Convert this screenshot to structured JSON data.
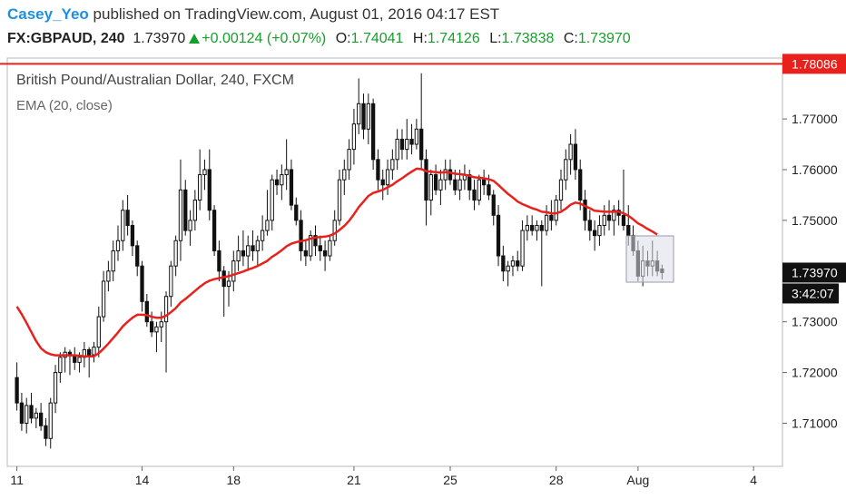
{
  "header": {
    "publisher": "Casey_Yeo",
    "published_text": "published on TradingView.com, August 01, 2016 04:17 EST",
    "symbol": "FX:GBPAUD, 240",
    "last": "1.73970",
    "change": "+0.00124 (+0.07%)",
    "open_label": "O:",
    "open": "1.74041",
    "high_label": "H:",
    "high": "1.74126",
    "low_label": "L:",
    "low": "1.73838",
    "close_label": "C:",
    "close": "1.73970"
  },
  "legend": {
    "symbol_title": "British Pound/Australian Dollar, 240, FXCM",
    "indicator_title": "EMA (20, close)"
  },
  "colors": {
    "up_candle": "#ffffff",
    "down_candle": "#111111",
    "wick": "#111111",
    "ema": "#e8211c",
    "hline": "#e8211c",
    "price_up": "#14a02a",
    "axis_text": "#222222",
    "publisher": "#1f8fe0"
  },
  "chart_data": {
    "type": "candlestick",
    "title": "British Pound/Australian Dollar, 240, FXCM",
    "ylim": [
      1.7015,
      1.782
    ],
    "y_ticks": [
      "1.71000",
      "1.72000",
      "1.73000",
      "1.74000",
      "1.75000",
      "1.76000",
      "1.77000"
    ],
    "y_tick_values": [
      1.71,
      1.72,
      1.73,
      1.74,
      1.75,
      1.76,
      1.77
    ],
    "x_ticks": [
      "11",
      "14",
      "18",
      "21",
      "25",
      "28",
      "Aug",
      "4"
    ],
    "x_tick_bars": [
      0,
      26,
      45,
      70,
      90,
      112,
      129,
      153
    ],
    "x_range_bars": [
      -2,
      159
    ],
    "horizontal_line": {
      "value": 1.78086,
      "label": "1.78086"
    },
    "last_price": {
      "value": 1.7397,
      "label": "1.73970",
      "countdown": "3:42:07"
    },
    "series": [
      {
        "name": "GBPAUD",
        "ohlc": [
          [
            1.719,
            1.722,
            1.7125,
            1.714
          ],
          [
            1.714,
            1.716,
            1.7085,
            1.71
          ],
          [
            1.71,
            1.715,
            1.708,
            1.7135
          ],
          [
            1.7135,
            1.716,
            1.71,
            1.711
          ],
          [
            1.711,
            1.713,
            1.709,
            1.712
          ],
          [
            1.712,
            1.714,
            1.7085,
            1.7095
          ],
          [
            1.7095,
            1.711,
            1.7055,
            1.707
          ],
          [
            1.707,
            1.715,
            1.705,
            1.714
          ],
          [
            1.714,
            1.7215,
            1.712,
            1.72
          ],
          [
            1.72,
            1.724,
            1.718,
            1.723
          ],
          [
            1.723,
            1.725,
            1.72,
            1.724
          ],
          [
            1.724,
            1.7245,
            1.7195,
            1.7235
          ],
          [
            1.7235,
            1.725,
            1.7205,
            1.722
          ],
          [
            1.722,
            1.724,
            1.72,
            1.723
          ],
          [
            1.723,
            1.726,
            1.721,
            1.7245
          ],
          [
            1.7245,
            1.725,
            1.719,
            1.7235
          ],
          [
            1.7235,
            1.726,
            1.722,
            1.725
          ],
          [
            1.725,
            1.733,
            1.723,
            1.731
          ],
          [
            1.731,
            1.74,
            1.73,
            1.738
          ],
          [
            1.738,
            1.742,
            1.736,
            1.74
          ],
          [
            1.74,
            1.746,
            1.738,
            1.744
          ],
          [
            1.744,
            1.749,
            1.742,
            1.746
          ],
          [
            1.746,
            1.754,
            1.744,
            1.752
          ],
          [
            1.752,
            1.755,
            1.747,
            1.749
          ],
          [
            1.749,
            1.75,
            1.743,
            1.745
          ],
          [
            1.745,
            1.746,
            1.739,
            1.741
          ],
          [
            1.741,
            1.742,
            1.732,
            1.734
          ],
          [
            1.734,
            1.7355,
            1.729,
            1.73
          ],
          [
            1.73,
            1.732,
            1.727,
            1.728
          ],
          [
            1.728,
            1.73,
            1.724,
            1.729
          ],
          [
            1.729,
            1.732,
            1.726,
            1.73
          ],
          [
            1.73,
            1.736,
            1.72,
            1.735
          ],
          [
            1.735,
            1.742,
            1.733,
            1.741
          ],
          [
            1.741,
            1.747,
            1.739,
            1.746
          ],
          [
            1.746,
            1.762,
            1.742,
            1.756
          ],
          [
            1.756,
            1.758,
            1.747,
            1.748
          ],
          [
            1.748,
            1.752,
            1.745,
            1.75
          ],
          [
            1.75,
            1.756,
            1.748,
            1.754
          ],
          [
            1.754,
            1.764,
            1.752,
            1.759
          ],
          [
            1.759,
            1.762,
            1.756,
            1.76
          ],
          [
            1.76,
            1.764,
            1.75,
            1.752
          ],
          [
            1.752,
            1.753,
            1.743,
            1.744
          ],
          [
            1.744,
            1.746,
            1.738,
            1.74
          ],
          [
            1.74,
            1.741,
            1.731,
            1.737
          ],
          [
            1.737,
            1.74,
            1.733,
            1.738
          ],
          [
            1.738,
            1.744,
            1.736,
            1.742
          ],
          [
            1.742,
            1.747,
            1.74,
            1.744
          ],
          [
            1.744,
            1.748,
            1.741,
            1.743
          ],
          [
            1.743,
            1.747,
            1.74,
            1.745
          ],
          [
            1.745,
            1.748,
            1.742,
            1.744
          ],
          [
            1.744,
            1.747,
            1.741,
            1.746
          ],
          [
            1.746,
            1.751,
            1.744,
            1.748
          ],
          [
            1.748,
            1.756,
            1.747,
            1.75
          ],
          [
            1.75,
            1.759,
            1.748,
            1.758
          ],
          [
            1.758,
            1.76,
            1.755,
            1.757
          ],
          [
            1.757,
            1.761,
            1.754,
            1.759
          ],
          [
            1.759,
            1.766,
            1.756,
            1.76
          ],
          [
            1.76,
            1.762,
            1.752,
            1.753
          ],
          [
            1.753,
            1.7545,
            1.749,
            1.75
          ],
          [
            1.75,
            1.752,
            1.742,
            1.744
          ],
          [
            1.744,
            1.746,
            1.741,
            1.743
          ],
          [
            1.743,
            1.748,
            1.742,
            1.747
          ],
          [
            1.747,
            1.749,
            1.743,
            1.745
          ],
          [
            1.745,
            1.747,
            1.742,
            1.744
          ],
          [
            1.744,
            1.746,
            1.74,
            1.743
          ],
          [
            1.743,
            1.747,
            1.742,
            1.746
          ],
          [
            1.746,
            1.752,
            1.745,
            1.75
          ],
          [
            1.75,
            1.76,
            1.749,
            1.758
          ],
          [
            1.758,
            1.762,
            1.755,
            1.76
          ],
          [
            1.76,
            1.766,
            1.758,
            1.764
          ],
          [
            1.764,
            1.772,
            1.761,
            1.769
          ],
          [
            1.769,
            1.778,
            1.767,
            1.773
          ],
          [
            1.773,
            1.775,
            1.766,
            1.768
          ],
          [
            1.768,
            1.775,
            1.765,
            1.773
          ],
          [
            1.773,
            1.774,
            1.76,
            1.762
          ],
          [
            1.762,
            1.764,
            1.756,
            1.758
          ],
          [
            1.758,
            1.76,
            1.754,
            1.757
          ],
          [
            1.757,
            1.762,
            1.755,
            1.76
          ],
          [
            1.76,
            1.764,
            1.758,
            1.762
          ],
          [
            1.762,
            1.768,
            1.76,
            1.766
          ],
          [
            1.766,
            1.768,
            1.762,
            1.764
          ],
          [
            1.764,
            1.77,
            1.762,
            1.766
          ],
          [
            1.766,
            1.769,
            1.763,
            1.765
          ],
          [
            1.765,
            1.77,
            1.764,
            1.768
          ],
          [
            1.768,
            1.779,
            1.76,
            1.762
          ],
          [
            1.762,
            1.764,
            1.749,
            1.754
          ],
          [
            1.754,
            1.76,
            1.751,
            1.759
          ],
          [
            1.759,
            1.761,
            1.755,
            1.756
          ],
          [
            1.756,
            1.76,
            1.753,
            1.758
          ],
          [
            1.758,
            1.762,
            1.756,
            1.76
          ],
          [
            1.76,
            1.762,
            1.757,
            1.758
          ],
          [
            1.758,
            1.76,
            1.755,
            1.756
          ],
          [
            1.756,
            1.76,
            1.754,
            1.758
          ],
          [
            1.758,
            1.761,
            1.756,
            1.759
          ],
          [
            1.759,
            1.76,
            1.754,
            1.756
          ],
          [
            1.756,
            1.758,
            1.752,
            1.754
          ],
          [
            1.754,
            1.759,
            1.753,
            1.758
          ],
          [
            1.758,
            1.76,
            1.755,
            1.757
          ],
          [
            1.757,
            1.759,
            1.754,
            1.755
          ],
          [
            1.755,
            1.756,
            1.749,
            1.751
          ],
          [
            1.751,
            1.753,
            1.741,
            1.743
          ],
          [
            1.743,
            1.745,
            1.738,
            1.74
          ],
          [
            1.74,
            1.742,
            1.737,
            1.741
          ],
          [
            1.741,
            1.743,
            1.739,
            1.742
          ],
          [
            1.742,
            1.744,
            1.74,
            1.741
          ],
          [
            1.741,
            1.75,
            1.74,
            1.748
          ],
          [
            1.748,
            1.751,
            1.746,
            1.749
          ],
          [
            1.749,
            1.751,
            1.747,
            1.748
          ],
          [
            1.748,
            1.75,
            1.746,
            1.749
          ],
          [
            1.749,
            1.75,
            1.737,
            1.748
          ],
          [
            1.748,
            1.753,
            1.747,
            1.751
          ],
          [
            1.751,
            1.754,
            1.748,
            1.75
          ],
          [
            1.75,
            1.755,
            1.749,
            1.754
          ],
          [
            1.754,
            1.76,
            1.752,
            1.758
          ],
          [
            1.758,
            1.764,
            1.756,
            1.762
          ],
          [
            1.762,
            1.767,
            1.759,
            1.765
          ],
          [
            1.765,
            1.768,
            1.758,
            1.76
          ],
          [
            1.76,
            1.762,
            1.752,
            1.754
          ],
          [
            1.754,
            1.756,
            1.748,
            1.75
          ],
          [
            1.75,
            1.752,
            1.746,
            1.748
          ],
          [
            1.748,
            1.75,
            1.744,
            1.747
          ],
          [
            1.747,
            1.751,
            1.745,
            1.749
          ],
          [
            1.749,
            1.753,
            1.747,
            1.751
          ],
          [
            1.751,
            1.754,
            1.748,
            1.75
          ],
          [
            1.75,
            1.753,
            1.747,
            1.752
          ],
          [
            1.752,
            1.754,
            1.749,
            1.751
          ],
          [
            1.751,
            1.76,
            1.748,
            1.749
          ],
          [
            1.749,
            1.753,
            1.745,
            1.747
          ],
          [
            1.747,
            1.749,
            1.743,
            1.744
          ],
          [
            1.744,
            1.746,
            1.738,
            1.739
          ],
          [
            1.739,
            1.745,
            1.737,
            1.742
          ],
          [
            1.742,
            1.744,
            1.739,
            1.741
          ],
          [
            1.741,
            1.746,
            1.739,
            1.742
          ],
          [
            1.742,
            1.744,
            1.739,
            1.74
          ],
          [
            1.74041,
            1.74126,
            1.73838,
            1.7397
          ]
        ]
      },
      {
        "name": "EMA (20, close)",
        "values": [
          1.733,
          1.7315,
          1.7298,
          1.728,
          1.7262,
          1.7248,
          1.724,
          1.7236,
          1.7234,
          1.7234,
          1.7234,
          1.7234,
          1.7234,
          1.7233,
          1.7232,
          1.7232,
          1.7232,
          1.7238,
          1.7247,
          1.7257,
          1.7268,
          1.7279,
          1.7291,
          1.73,
          1.7308,
          1.7314,
          1.7314,
          1.7313,
          1.731,
          1.7308,
          1.7308,
          1.7312,
          1.7319,
          1.7327,
          1.7338,
          1.7345,
          1.7353,
          1.7361,
          1.7369,
          1.7376,
          1.7381,
          1.7384,
          1.7386,
          1.7388,
          1.739,
          1.7393,
          1.7396,
          1.7399,
          1.7403,
          1.7406,
          1.741,
          1.7415,
          1.742,
          1.7428,
          1.7434,
          1.7441,
          1.7449,
          1.7454,
          1.7457,
          1.7459,
          1.7461,
          1.7464,
          1.7466,
          1.7467,
          1.7468,
          1.747,
          1.7474,
          1.7481,
          1.7489,
          1.7499,
          1.7512,
          1.7526,
          1.7537,
          1.7548,
          1.7554,
          1.7557,
          1.756,
          1.7565,
          1.757,
          1.7577,
          1.7583,
          1.759,
          1.7596,
          1.7602,
          1.7601,
          1.7597,
          1.7596,
          1.7595,
          1.7594,
          1.7595,
          1.7594,
          1.7592,
          1.7591,
          1.759,
          1.7588,
          1.7585,
          1.7584,
          1.7583,
          1.7581,
          1.7578,
          1.757,
          1.7561,
          1.7552,
          1.7545,
          1.7537,
          1.7532,
          1.7528,
          1.7524,
          1.7521,
          1.7517,
          1.7516,
          1.7514,
          1.7514,
          1.7517,
          1.7523,
          1.7531,
          1.7535,
          1.7533,
          1.7528,
          1.7524,
          1.7519,
          1.7518,
          1.7517,
          1.7517,
          1.7517,
          1.7517,
          1.7514,
          1.7509,
          1.7502,
          1.7494,
          1.7489,
          1.7483,
          1.7478,
          1.7472
        ]
      }
    ]
  }
}
